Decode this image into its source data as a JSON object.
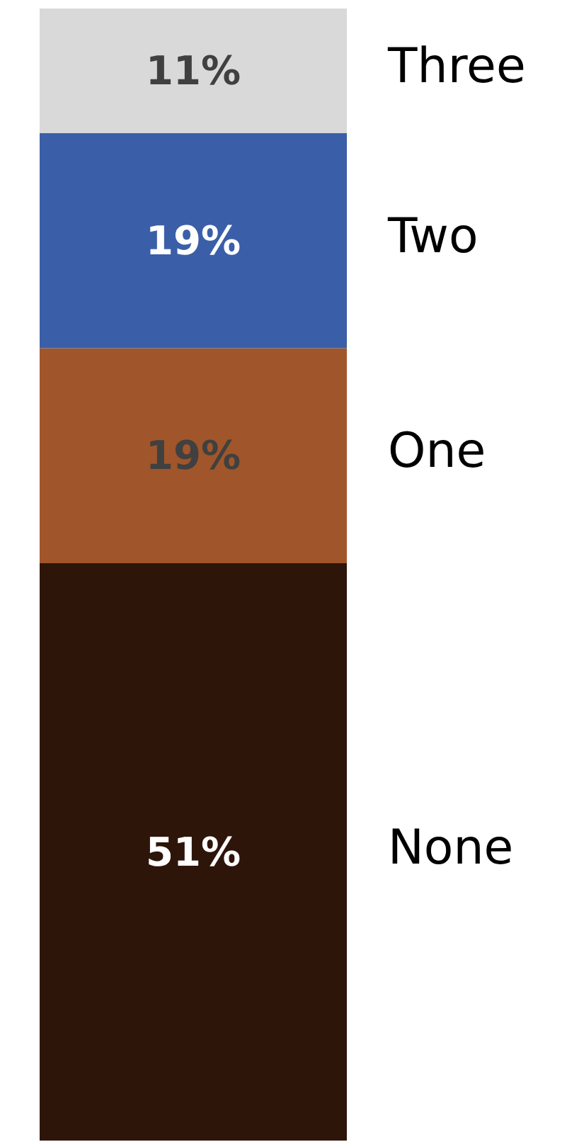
{
  "chart_data": {
    "type": "bar",
    "stacked": true,
    "categories": [
      null
    ],
    "series": [
      {
        "name": "None",
        "color": "#2e1509",
        "values": [
          51
        ],
        "value_labels": [
          "51%"
        ]
      },
      {
        "name": "One",
        "color": "#a0562a",
        "values": [
          19
        ],
        "value_labels": [
          "19%"
        ]
      },
      {
        "name": "Two",
        "color": "#3a5fa8",
        "values": [
          19
        ],
        "value_labels": [
          "19%"
        ]
      },
      {
        "name": "Three",
        "color": "#d9d9d9",
        "values": [
          11
        ],
        "value_labels": [
          "11%"
        ]
      }
    ]
  }
}
